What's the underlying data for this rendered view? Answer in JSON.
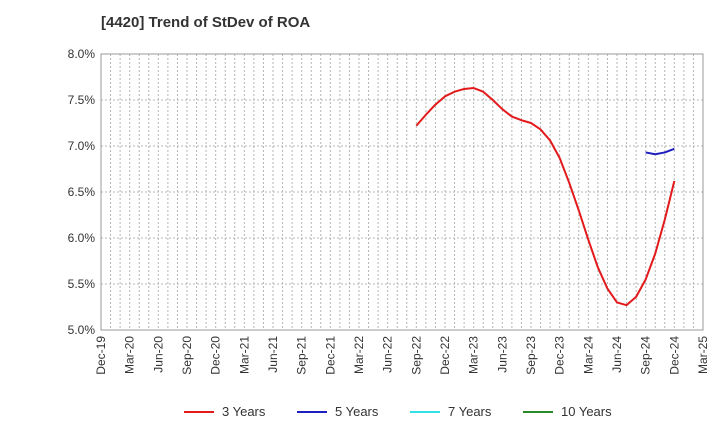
{
  "chart_data": {
    "type": "line",
    "title": "[4420]  Trend of StDev of ROA",
    "xlabel": "",
    "ylabel": "",
    "ylim": [
      5.0,
      8.0
    ],
    "y_ticks": [
      "5.0%",
      "5.5%",
      "6.0%",
      "6.5%",
      "7.0%",
      "7.5%",
      "8.0%"
    ],
    "x_ticks": [
      "Dec-19",
      "Mar-20",
      "Jun-20",
      "Sep-20",
      "Dec-20",
      "Mar-21",
      "Jun-21",
      "Sep-21",
      "Dec-21",
      "Mar-22",
      "Jun-22",
      "Sep-22",
      "Dec-22",
      "Mar-23",
      "Jun-23",
      "Sep-23",
      "Dec-23",
      "Mar-24",
      "Jun-24",
      "Sep-24",
      "Dec-24",
      "Mar-25"
    ],
    "grid": true,
    "legend_position": "bottom",
    "series": [
      {
        "name": "3 Years",
        "color": "#e31a1c",
        "points": [
          [
            "Sep-22",
            7.22
          ],
          [
            "Oct-22",
            7.34
          ],
          [
            "Nov-22",
            7.45
          ],
          [
            "Dec-22",
            7.54
          ],
          [
            "Jan-23",
            7.59
          ],
          [
            "Feb-23",
            7.62
          ],
          [
            "Mar-23",
            7.63
          ],
          [
            "Apr-23",
            7.59
          ],
          [
            "May-23",
            7.5
          ],
          [
            "Jun-23",
            7.4
          ],
          [
            "Jul-23",
            7.32
          ],
          [
            "Aug-23",
            7.28
          ],
          [
            "Sep-23",
            7.25
          ],
          [
            "Oct-23",
            7.18
          ],
          [
            "Nov-23",
            7.06
          ],
          [
            "Dec-23",
            6.87
          ],
          [
            "Jan-24",
            6.6
          ],
          [
            "Feb-24",
            6.3
          ],
          [
            "Mar-24",
            5.98
          ],
          [
            "Apr-24",
            5.68
          ],
          [
            "May-24",
            5.45
          ],
          [
            "Jun-24",
            5.3
          ],
          [
            "Jul-24",
            5.27
          ],
          [
            "Aug-24",
            5.36
          ],
          [
            "Sep-24",
            5.55
          ],
          [
            "Oct-24",
            5.83
          ],
          [
            "Nov-24",
            6.2
          ],
          [
            "Dec-24",
            6.62
          ]
        ]
      },
      {
        "name": "5 Years",
        "color": "#1f1fbf",
        "points": [
          [
            "Sep-24",
            6.93
          ],
          [
            "Oct-24",
            6.91
          ],
          [
            "Nov-24",
            6.93
          ],
          [
            "Dec-24",
            6.97
          ]
        ]
      },
      {
        "name": "7 Years",
        "color": "#33e0e6",
        "points": []
      },
      {
        "name": "10 Years",
        "color": "#2a8a2a",
        "points": []
      }
    ]
  }
}
